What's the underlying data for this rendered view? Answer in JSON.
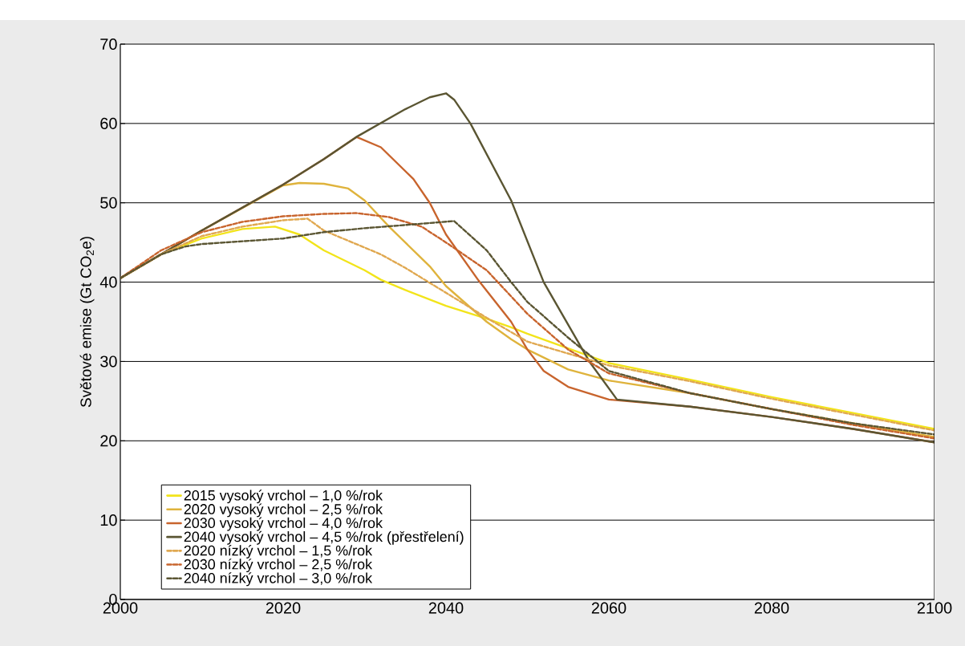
{
  "chart_data": {
    "type": "line",
    "ylabel": "Světové emise (Gt CO$_{2}$e)",
    "xlim": [
      2000,
      2100
    ],
    "xticks": [
      2000,
      2020,
      2040,
      2060,
      2080,
      2100
    ],
    "ylim": [
      0,
      70
    ],
    "yticks": [
      0,
      10,
      20,
      30,
      40,
      50,
      60,
      70
    ],
    "grid": "y",
    "legend": "bottom left",
    "series": [
      {
        "name": "2015 vysoký vrchol – 1,0 %/rok",
        "color": "#f2e41a",
        "line_style": "solid",
        "x": [
          2000,
          2005,
          2010,
          2015,
          2019,
          2022,
          2025,
          2030,
          2032,
          2035,
          2040,
          2045,
          2048,
          2050,
          2060,
          2070,
          2080,
          2090,
          2100
        ],
        "values": [
          40.5,
          43.5,
          45.5,
          46.7,
          47,
          46,
          44,
          41.5,
          40.3,
          39,
          37,
          35.4,
          34.3,
          33.5,
          29.8,
          27.7,
          25.5,
          23.5,
          21.5
        ]
      },
      {
        "name": "2020 vysoký vrchol – 2,5 %/rok",
        "color": "#dfb33c",
        "line_style": "solid",
        "x": [
          2000,
          2010,
          2020,
          2022,
          2025,
          2028,
          2030,
          2033,
          2035,
          2038,
          2040,
          2045,
          2048,
          2050,
          2055,
          2060,
          2070,
          2080,
          2090,
          2100
        ],
        "values": [
          40.5,
          46.5,
          52.2,
          52.5,
          52.4,
          51.8,
          50.3,
          47,
          45,
          42,
          39.5,
          35,
          32.8,
          31.5,
          29,
          27.6,
          26,
          24,
          22.2,
          20.5
        ]
      },
      {
        "name": "2030 vysoký vrchol – 4,0 %/rok",
        "color": "#c8642d",
        "line_style": "solid",
        "x": [
          2000,
          2010,
          2020,
          2025,
          2029,
          2032,
          2036,
          2038,
          2040,
          2044,
          2048,
          2050,
          2052,
          2055,
          2060,
          2070,
          2080,
          2090,
          2100
        ],
        "values": [
          40.5,
          46.5,
          52.3,
          55.5,
          58.3,
          57,
          53,
          50,
          46,
          40.2,
          35,
          31.5,
          28.8,
          26.8,
          25.2,
          24.3,
          23,
          21.5,
          19.8
        ]
      },
      {
        "name": "2040 vysoký vrchol – 4,5 %/rok (přestřelení)",
        "color": "#5a5532",
        "line_style": "solid",
        "x": [
          2000,
          2010,
          2020,
          2025,
          2029,
          2035,
          2038,
          2040,
          2041,
          2043,
          2048,
          2052,
          2057.6,
          2061,
          2070,
          2080,
          2090,
          2100
        ],
        "values": [
          40.5,
          46.5,
          52.3,
          55.5,
          58.3,
          61.8,
          63.3,
          63.8,
          63,
          60,
          50.3,
          40,
          30,
          25.2,
          24.3,
          23,
          21.5,
          19.8
        ]
      },
      {
        "name": "2020 nízký vrchol – 1,5 %/rok",
        "color": "#e0a850",
        "line_style": "dashed",
        "x": [
          2000,
          2005,
          2010,
          2015,
          2020,
          2023,
          2025,
          2032,
          2035,
          2042,
          2045,
          2050,
          2060,
          2070,
          2080,
          2090,
          2100
        ],
        "values": [
          40.5,
          43.5,
          45.8,
          47,
          47.8,
          48,
          46.5,
          43.5,
          41.8,
          37.4,
          35.5,
          32.5,
          29.5,
          27.5,
          25.3,
          23.3,
          21.3
        ]
      },
      {
        "name": "2030 nízký vrchol – 2,5 %/rok",
        "color": "#c8642d",
        "line_style": "dashed",
        "x": [
          2000,
          2005,
          2010,
          2015,
          2020,
          2025,
          2029,
          2033,
          2037,
          2040,
          2045,
          2050,
          2055,
          2060,
          2070,
          2080,
          2090,
          2100
        ],
        "values": [
          40.5,
          44,
          46.3,
          47.6,
          48.3,
          48.6,
          48.7,
          48.2,
          47,
          45,
          41.5,
          36,
          31.5,
          28.5,
          26,
          24,
          22,
          20.3
        ]
      },
      {
        "name": "2040 nízký vrchol – 3,0 %/rok",
        "color": "#5a5532",
        "line_style": "dashed",
        "x": [
          2000,
          2005,
          2008,
          2010,
          2020,
          2025,
          2030,
          2035,
          2041,
          2045,
          2048,
          2050,
          2055,
          2058,
          2060,
          2070,
          2080,
          2090,
          2100
        ],
        "values": [
          40.5,
          43.5,
          44.5,
          44.8,
          45.5,
          46.3,
          46.8,
          47.2,
          47.7,
          44,
          40,
          37.5,
          33,
          30.5,
          28.8,
          26,
          24,
          22.2,
          20.8
        ]
      }
    ]
  }
}
